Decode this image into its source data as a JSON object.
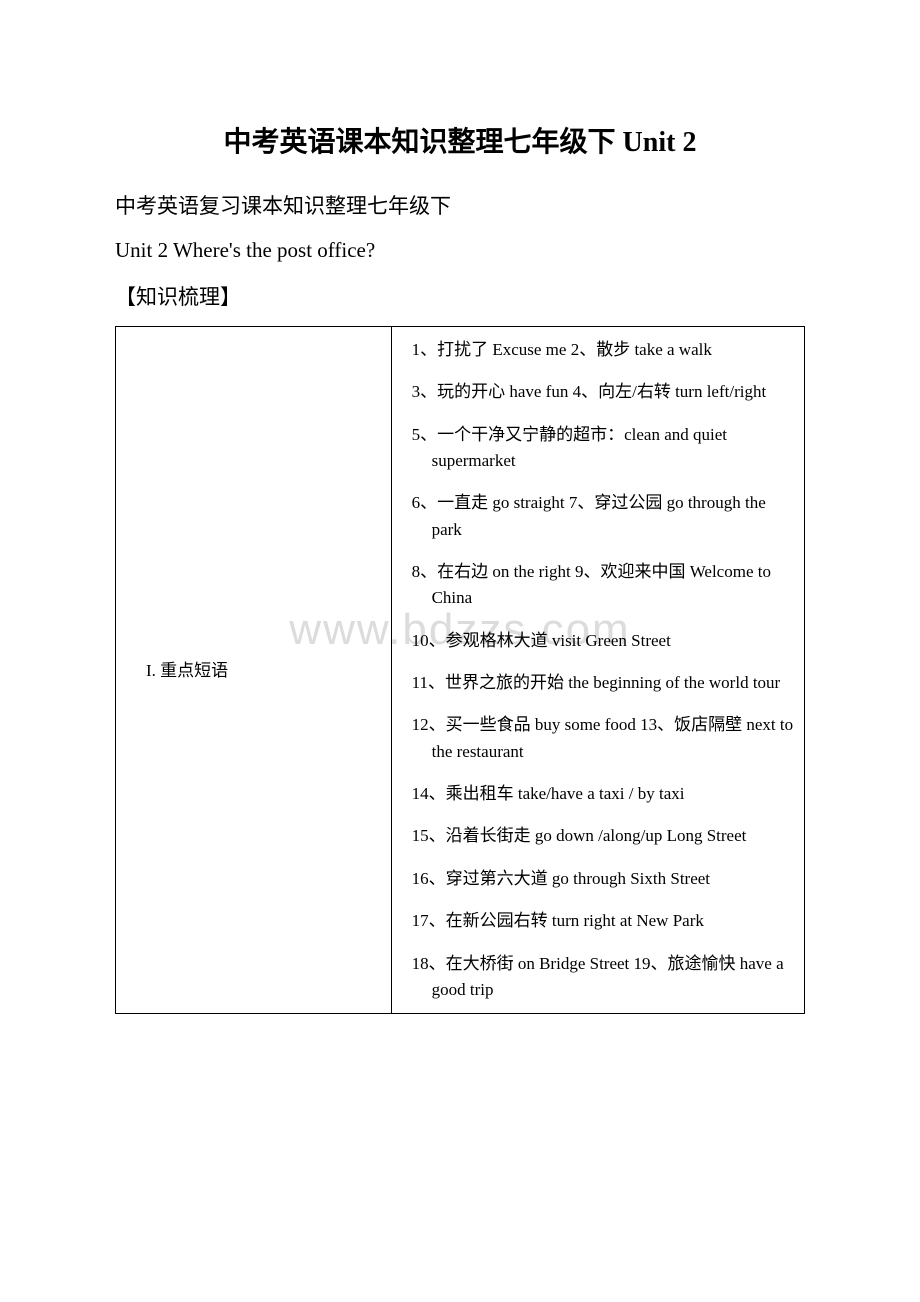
{
  "title": "中考英语课本知识整理七年级下 Unit 2",
  "subtitle": "中考英语复习课本知识整理七年级下",
  "unit_title": "Unit 2 Where's the post office?",
  "section_heading": "【知识梳理】",
  "watermark": "www.bdzzs.com",
  "table": {
    "left_label": "I. 重点短语",
    "items": [
      "1、打扰了 Excuse me 2、散步  take a walk",
      "3、玩的开心  have fun 4、向左/右转   turn left/right",
      "5、一个干净又宁静的超市：clean and quiet supermarket",
      "6、一直走  go straight                        7、穿过公园  go through the park",
      "8、在右边  on the right 9、欢迎来中国  Welcome to China",
      "10、参观格林大道  visit Green Street",
      "11、世界之旅的开始 the beginning of the world tour",
      "12、买一些食品 buy some food 13、饭店隔壁 next to the restaurant",
      "14、乘出租车  take/have a taxi / by taxi",
      "15、沿着长街走  go down /along/up Long Street",
      "16、穿过第六大道  go through Sixth Street",
      "17、在新公园右转  turn right at New Park",
      "18、在大桥街  on Bridge Street  19、旅途愉快  have a good trip"
    ]
  },
  "colors": {
    "background": "#ffffff",
    "text": "#000000",
    "border": "#000000",
    "watermark": "#dcdcdc"
  }
}
